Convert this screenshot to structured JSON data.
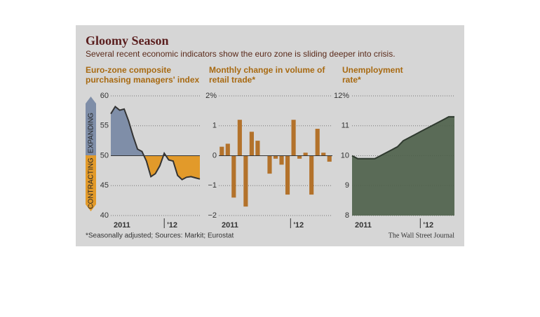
{
  "title": "Gloomy Season",
  "subtitle": "Several recent economic indicators show the euro zone is sliding deeper into crisis.",
  "note": "*Seasonally adjusted; Sources: Markit; Eurostat",
  "source": "The Wall Street Journal",
  "chart_data": [
    {
      "type": "area-line",
      "title": [
        "Euro-zone composite",
        "purchasing managers' index"
      ],
      "categories": [
        "2011",
        null,
        null,
        null,
        null,
        null,
        null,
        null,
        null,
        null,
        null,
        null,
        "'12",
        null,
        null,
        null,
        null,
        null,
        null,
        null,
        null
      ],
      "values": [
        57.0,
        58.2,
        57.6,
        57.8,
        55.8,
        53.3,
        51.1,
        50.7,
        49.1,
        46.5,
        47.0,
        48.3,
        50.4,
        49.3,
        49.1,
        46.7,
        46.0,
        46.4,
        46.5,
        46.3,
        46.1
      ],
      "baseline": 50,
      "color": "#333333",
      "above_color": "#7f8ea8",
      "below_color": "#e29a2a",
      "annotations": [
        "EXPANDING",
        "CONTRACTING"
      ],
      "ylim": [
        40,
        60
      ],
      "yticks": [
        40,
        45,
        50,
        55,
        60
      ],
      "grid": true
    },
    {
      "type": "bar",
      "title": [
        "Monthly change in volume of",
        "retail trade*"
      ],
      "categories": [
        "2011",
        null,
        null,
        null,
        null,
        null,
        null,
        null,
        null,
        null,
        null,
        null,
        "'12",
        null,
        null,
        null,
        null,
        null,
        null
      ],
      "values": [
        0.3,
        0.4,
        -1.4,
        1.2,
        -1.7,
        0.8,
        0.5,
        0.0,
        -0.6,
        -0.1,
        -0.3,
        -1.3,
        1.2,
        -0.1,
        0.1,
        -1.3,
        0.9,
        0.1,
        -0.2
      ],
      "color": "#b3722b",
      "ylim": [
        -2,
        2
      ],
      "yticks": [
        {
          "value": -2,
          "label": "−2"
        },
        {
          "value": -1,
          "label": "−1"
        },
        0,
        1,
        {
          "value": 2,
          "label": "2%"
        }
      ],
      "grid": true
    },
    {
      "type": "area",
      "title": [
        "Unemployment",
        "rate*"
      ],
      "categories": [
        "2011",
        null,
        null,
        null,
        null,
        null,
        null,
        null,
        null,
        null,
        null,
        null,
        "'12",
        null,
        null,
        null,
        null,
        null,
        null
      ],
      "values": [
        10.0,
        9.9,
        9.9,
        9.9,
        9.9,
        10.0,
        10.1,
        10.2,
        10.3,
        10.5,
        10.6,
        10.7,
        10.8,
        10.9,
        11.0,
        11.1,
        11.2,
        11.3,
        11.3
      ],
      "color": "#2f3a2f",
      "fill": "#4d5f49",
      "ylim": [
        8,
        12
      ],
      "yticks": [
        8,
        9,
        10,
        11,
        {
          "value": 12,
          "label": "12%"
        }
      ],
      "grid": true
    }
  ]
}
